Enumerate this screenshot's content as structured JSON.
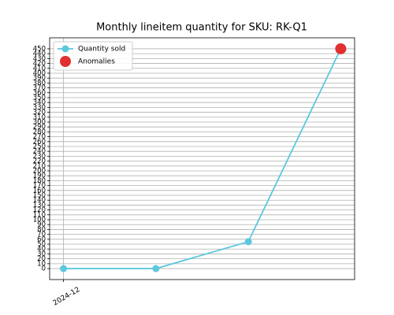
{
  "chart_data": {
    "type": "line",
    "title": "Monthly lineitem quantity for SKU: RK-Q1",
    "categories": [
      "2024-12",
      null,
      null,
      null
    ],
    "series": [
      {
        "name": "Quantity sold",
        "color": "#5bc8de",
        "style": "line",
        "values": [
          0,
          0,
          55,
          450
        ]
      },
      {
        "name": "Anomalies",
        "color": "#e03030",
        "style": "points",
        "values": [
          null,
          null,
          null,
          450
        ]
      }
    ],
    "ylim": [
      -22.5,
      472.5
    ],
    "yticks": [
      0,
      10,
      20,
      30,
      40,
      50,
      60,
      70,
      80,
      90,
      100,
      110,
      120,
      130,
      140,
      150,
      160,
      170,
      180,
      190,
      200,
      210,
      220,
      230,
      240,
      250,
      260,
      270,
      280,
      290,
      300,
      310,
      320,
      330,
      340,
      350,
      360,
      370,
      380,
      390,
      400,
      410,
      420,
      430,
      440,
      450
    ],
    "grid": true,
    "legend": "upper left"
  }
}
